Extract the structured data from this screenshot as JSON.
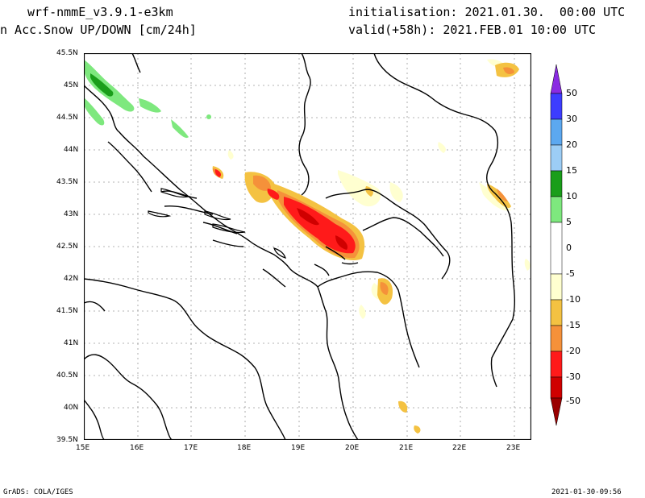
{
  "header": {
    "model": "wrf-nmmE_v3.9.1-e3km",
    "field": "n Acc.Snow UP/DOWN [cm/24h]",
    "init": "initialisation: 2021.01.30.  00:00 UTC",
    "valid": "valid(+58h): 2021.FEB.01 10:00 UTC"
  },
  "map": {
    "lon_ticks": [
      "15E",
      "16E",
      "17E",
      "18E",
      "19E",
      "20E",
      "21E",
      "22E",
      "23E"
    ],
    "lat_ticks": [
      "45.5N",
      "45N",
      "44.5N",
      "44N",
      "43.5N",
      "43N",
      "42.5N",
      "42N",
      "41.5N",
      "41N",
      "40.5N",
      "40N",
      "39.5N"
    ],
    "lon_range": [
      15,
      23.3
    ],
    "lat_range": [
      39.5,
      45.5
    ]
  },
  "colorbar": {
    "labels": [
      "50",
      "30",
      "20",
      "15",
      "10",
      "5",
      "0",
      "-5",
      "-10",
      "-15",
      "-20",
      "-30",
      "-50"
    ],
    "colors": [
      "#8a2be2",
      "#3d3dff",
      "#5ca8f0",
      "#9ccdf5",
      "#1a9e1a",
      "#7ee87e",
      "#ffffff",
      "#ffffd0",
      "#f4c242",
      "#f5913a",
      "#ff1a1a",
      "#d00000",
      "#9a0000"
    ]
  },
  "footer": {
    "left": "GrADS: COLA/IGES",
    "right": "2021-01-30-09:56"
  }
}
